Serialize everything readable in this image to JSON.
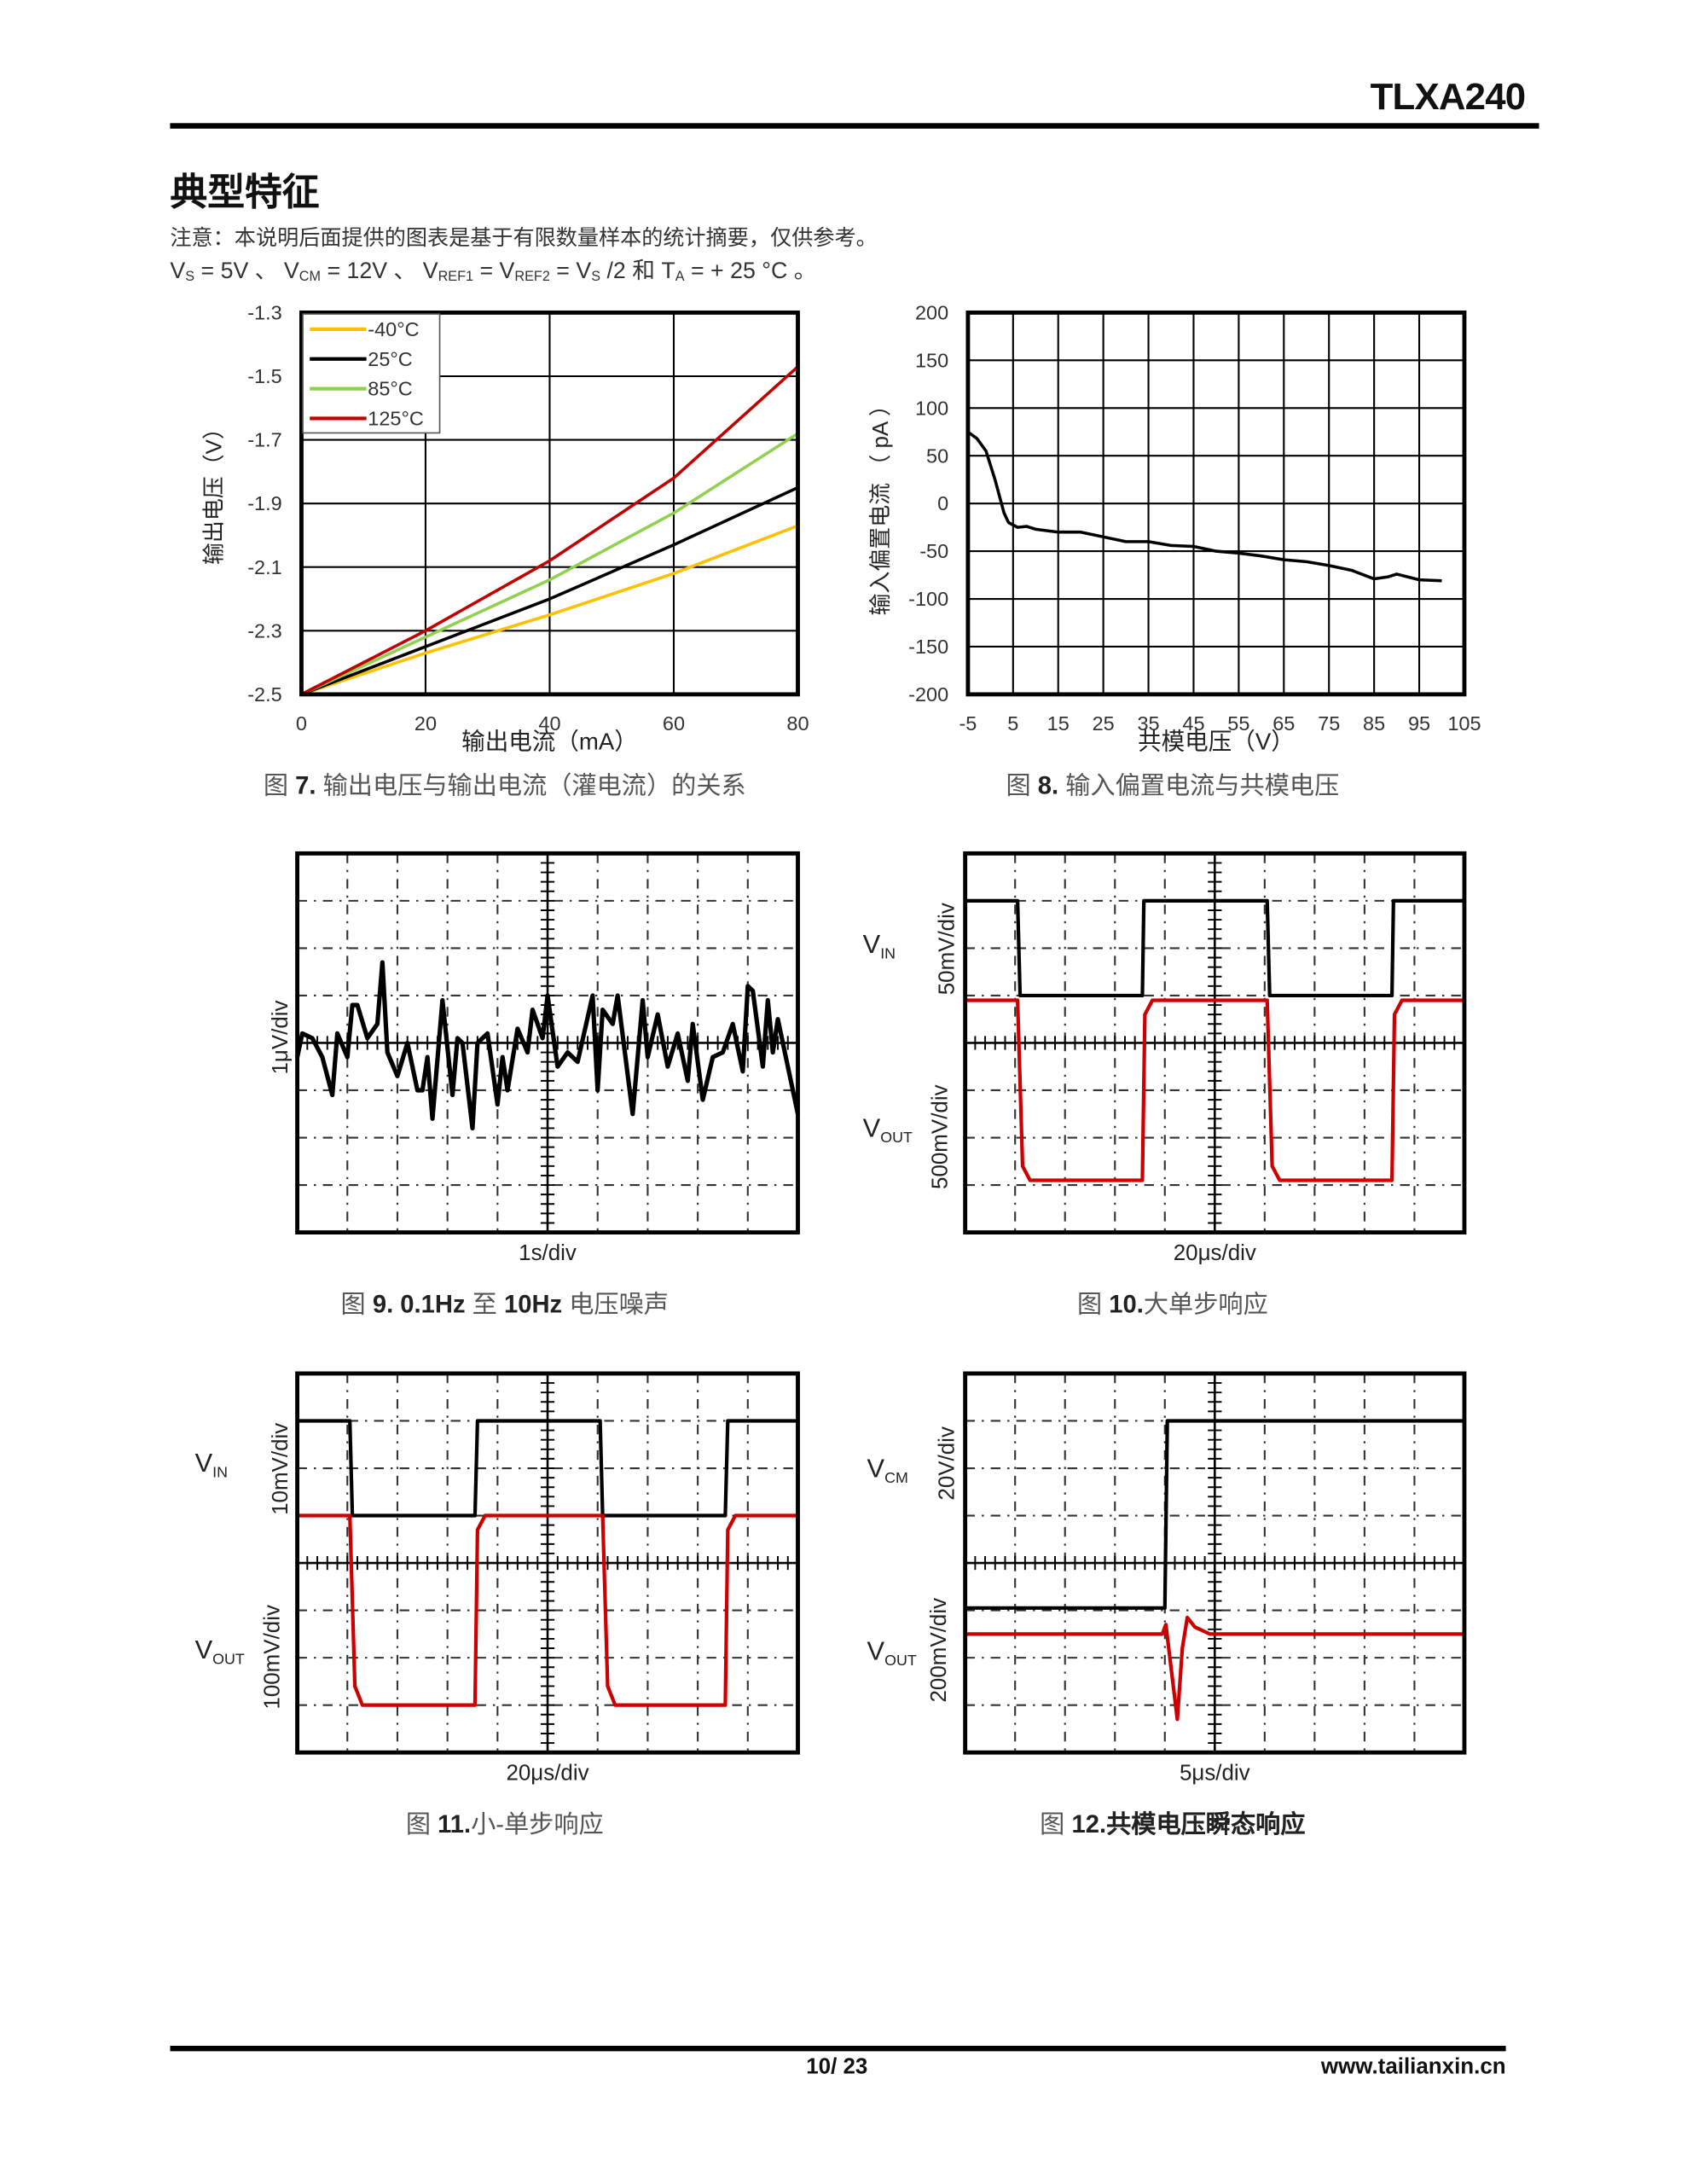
{
  "header": {
    "part_number": "TLXA240"
  },
  "section": {
    "title": "典型特征",
    "note": "注意：本说明后面提供的图表是基于有限数量样本的统计摘要，仅供参考。",
    "conditions": {
      "vs": "V",
      "vs_sub": "S",
      "vs_val": " = 5V 、 ",
      "vcm": "V",
      "vcm_sub": "CM",
      "vcm_val": " = 12V 、 ",
      "vref1": "V",
      "vref1_sub": "REF1",
      "vref1_val": " = ",
      "vref2": "V",
      "vref2_sub": "REF2",
      "vref2_val": " = ",
      "vs2": "V",
      "vs2_sub": "S",
      "vs2_val": " /2 和 ",
      "ta": "T",
      "ta_sub": "A",
      "ta_val": " = + 25 °C 。"
    }
  },
  "figures": {
    "fig7": {
      "prefix": "图 ",
      "number": "7.",
      "text": " 输出电压与输出电流（灌电流）的关系"
    },
    "fig8": {
      "prefix": "图 ",
      "number": "8.",
      "text": " 输入偏置电流与共模电压"
    },
    "fig9": {
      "prefix": "图 ",
      "number": "9. 0.1Hz",
      "mid": " 至 ",
      "number2": "10Hz",
      "text": " 电压噪声"
    },
    "fig10": {
      "prefix": "图 ",
      "number": "10.",
      "text": "大单步响应"
    },
    "fig11": {
      "prefix": "图 ",
      "number": "11.",
      "text": "小-单步响应"
    },
    "fig12": {
      "prefix": "图 ",
      "number": "12.",
      "text": "共模电压瞬态响应"
    }
  },
  "chart_data": [
    {
      "id": "fig7",
      "type": "line",
      "xlabel": "输出电流（mA）",
      "ylabel": "输出电压（V）",
      "xlim": [
        0,
        80
      ],
      "ylim": [
        -2.5,
        -1.3
      ],
      "xticks": [
        "0",
        "20",
        "40",
        "60",
        "80"
      ],
      "yticks": [
        "-2.5",
        "-2.3",
        "-2.1",
        "-1.9",
        "-1.7",
        "-1.5",
        "-1.3"
      ],
      "grid": true,
      "legend_position": "top-left",
      "series": [
        {
          "name": "-40°C",
          "color": "#FFC000",
          "x": [
            0,
            20,
            40,
            60,
            80
          ],
          "y": [
            -2.5,
            -2.37,
            -2.25,
            -2.12,
            -1.97
          ]
        },
        {
          "name": "25°C",
          "color": "#000000",
          "x": [
            0,
            20,
            40,
            60,
            80
          ],
          "y": [
            -2.5,
            -2.35,
            -2.2,
            -2.03,
            -1.85
          ]
        },
        {
          "name": "85°C",
          "color": "#92D050",
          "x": [
            0,
            20,
            40,
            60,
            80
          ],
          "y": [
            -2.5,
            -2.32,
            -2.14,
            -1.93,
            -1.68
          ]
        },
        {
          "name": "125°C",
          "color": "#C00000",
          "x": [
            0,
            20,
            40,
            60,
            80
          ],
          "y": [
            -2.5,
            -2.3,
            -2.08,
            -1.82,
            -1.47
          ]
        }
      ]
    },
    {
      "id": "fig8",
      "type": "line",
      "xlabel": "共模电压（V）",
      "ylabel": "输入偏置电流 （ pA ）",
      "xlim": [
        -5,
        105
      ],
      "ylim": [
        -200,
        200
      ],
      "xticks": [
        "-5",
        "5",
        "15",
        "25",
        "35",
        "45",
        "55",
        "65",
        "75",
        "85",
        "95",
        "105"
      ],
      "yticks": [
        "-200",
        "-150",
        "-100",
        "-50",
        "0",
        "50",
        "100",
        "150",
        "200"
      ],
      "grid": true,
      "series": [
        {
          "color": "#000000",
          "x": [
            -5,
            -3,
            -1,
            1,
            3,
            4,
            6,
            8,
            10,
            15,
            20,
            25,
            30,
            35,
            40,
            45,
            50,
            55,
            60,
            65,
            70,
            75,
            80,
            85,
            88,
            90,
            95,
            100
          ],
          "y": [
            75,
            68,
            55,
            25,
            -10,
            -20,
            -25,
            -24,
            -27,
            -30,
            -30,
            -35,
            -40,
            -40,
            -44,
            -45,
            -50,
            -52,
            -55,
            -59,
            -61,
            -65,
            -70,
            -79,
            -77,
            -74,
            -80,
            -81
          ]
        }
      ]
    },
    {
      "id": "fig9",
      "type": "line",
      "scope": true,
      "xlabel": "1s/div",
      "ylabel": "1μV/div",
      "xlim": [
        0,
        10
      ],
      "ylim": [
        -4,
        4
      ],
      "series": [
        {
          "color": "#000000",
          "x": [
            0,
            0.1,
            0.3,
            0.5,
            0.7,
            0.8,
            1.0,
            1.1,
            1.2,
            1.4,
            1.6,
            1.7,
            1.8,
            2.0,
            2.2,
            2.4,
            2.5,
            2.6,
            2.7,
            2.9,
            3.1,
            3.2,
            3.3,
            3.5,
            3.6,
            3.8,
            4.0,
            4.1,
            4.2,
            4.4,
            4.6,
            4.7,
            4.9,
            5.0,
            5.2,
            5.4,
            5.6,
            5.9,
            6.0,
            6.1,
            6.3,
            6.4,
            6.7,
            6.9,
            7.0,
            7.2,
            7.4,
            7.6,
            7.8,
            7.9,
            8.1,
            8.3,
            8.5,
            8.7,
            8.9,
            9.0,
            9.1,
            9.3,
            9.4,
            9.5,
            9.6,
            9.8,
            10
          ],
          "y": [
            -0.3,
            0.2,
            0.1,
            -0.3,
            -1.1,
            0.2,
            -0.3,
            0.8,
            0.8,
            0.1,
            0.4,
            1.7,
            -0.2,
            -0.7,
            0.0,
            -1.0,
            -1.0,
            -0.3,
            -1.6,
            0.9,
            -1.1,
            0.1,
            0.0,
            -1.8,
            0.0,
            0.2,
            -1.3,
            -0.3,
            -1.0,
            0.3,
            -0.2,
            0.7,
            0.1,
            1.0,
            -0.5,
            -0.2,
            -0.4,
            1.0,
            -1.0,
            0.7,
            0.4,
            1.0,
            -1.5,
            0.9,
            -0.3,
            0.6,
            -0.5,
            0.2,
            -0.8,
            0.4,
            -1.2,
            -0.3,
            -0.2,
            0.4,
            -0.6,
            1.2,
            1.1,
            -0.5,
            0.9,
            -0.2,
            0.5,
            -0.5,
            -1.5
          ]
        }
      ]
    },
    {
      "id": "fig10",
      "type": "line",
      "scope": true,
      "xlabel": "20μs/div",
      "xlim": [
        0,
        10
      ],
      "ylim": [
        -4,
        4
      ],
      "channels": [
        {
          "label": "V",
          "sub": "IN",
          "scale": "50mV/div"
        },
        {
          "label": "V",
          "sub": "OUT",
          "scale": "500mV/div"
        }
      ],
      "series": [
        {
          "color": "#000000",
          "x": [
            0,
            1.05,
            1.1,
            3.55,
            3.58,
            6.05,
            6.1,
            8.55,
            8.58,
            10
          ],
          "y": [
            3,
            3,
            1,
            1,
            3,
            3,
            1,
            1,
            3,
            3
          ]
        },
        {
          "color": "#CC0000",
          "x": [
            0,
            1.05,
            1.15,
            1.3,
            3.55,
            3.6,
            3.75,
            6.05,
            6.15,
            6.3,
            8.55,
            8.6,
            8.75,
            10
          ],
          "y": [
            0.9,
            0.9,
            -2.6,
            -2.9,
            -2.9,
            0.6,
            0.9,
            0.9,
            -2.6,
            -2.9,
            -2.9,
            0.6,
            0.9,
            0.9
          ]
        }
      ]
    },
    {
      "id": "fig11",
      "type": "line",
      "scope": true,
      "xlabel": "20μs/div",
      "xlim": [
        0,
        10
      ],
      "ylim": [
        -4,
        4
      ],
      "channels": [
        {
          "label": "V",
          "sub": "IN",
          "scale": "10mV/div"
        },
        {
          "label": "V",
          "sub": "OUT",
          "scale": "100mV/div"
        }
      ],
      "series": [
        {
          "color": "#000000",
          "x": [
            0,
            1.05,
            1.1,
            3.55,
            3.6,
            6.05,
            6.1,
            8.55,
            8.6,
            10
          ],
          "y": [
            3,
            3,
            1,
            1,
            3,
            3,
            1,
            1,
            3,
            3
          ]
        },
        {
          "color": "#CC0000",
          "x": [
            0,
            1.05,
            1.15,
            1.3,
            3.55,
            3.6,
            3.75,
            6.1,
            6.2,
            6.35,
            8.55,
            8.6,
            8.75,
            10
          ],
          "y": [
            1,
            1,
            -2.6,
            -3,
            -3,
            0.7,
            1,
            1,
            -2.6,
            -3,
            -3,
            0.7,
            1,
            1
          ]
        }
      ]
    },
    {
      "id": "fig12",
      "type": "line",
      "scope": true,
      "xlabel": "5μs/div",
      "xlim": [
        0,
        10
      ],
      "ylim": [
        -4,
        4
      ],
      "channels": [
        {
          "label": "V",
          "sub": "CM",
          "scale": "20V/div"
        },
        {
          "label": "V",
          "sub": "OUT",
          "scale": "200mV/div"
        }
      ],
      "series": [
        {
          "color": "#000000",
          "x": [
            0,
            4.0,
            4.05,
            10
          ],
          "y": [
            -0.95,
            -0.95,
            3,
            3
          ]
        },
        {
          "color": "#CC0000",
          "x": [
            0,
            3.95,
            4.02,
            4.25,
            4.35,
            4.45,
            4.6,
            4.9,
            10
          ],
          "y": [
            -1.5,
            -1.5,
            -1.3,
            -3.3,
            -1.8,
            -1.15,
            -1.35,
            -1.5,
            -1.5
          ]
        }
      ]
    }
  ],
  "footer": {
    "page": "10/ 23",
    "website": "www.tailianxin.cn"
  }
}
